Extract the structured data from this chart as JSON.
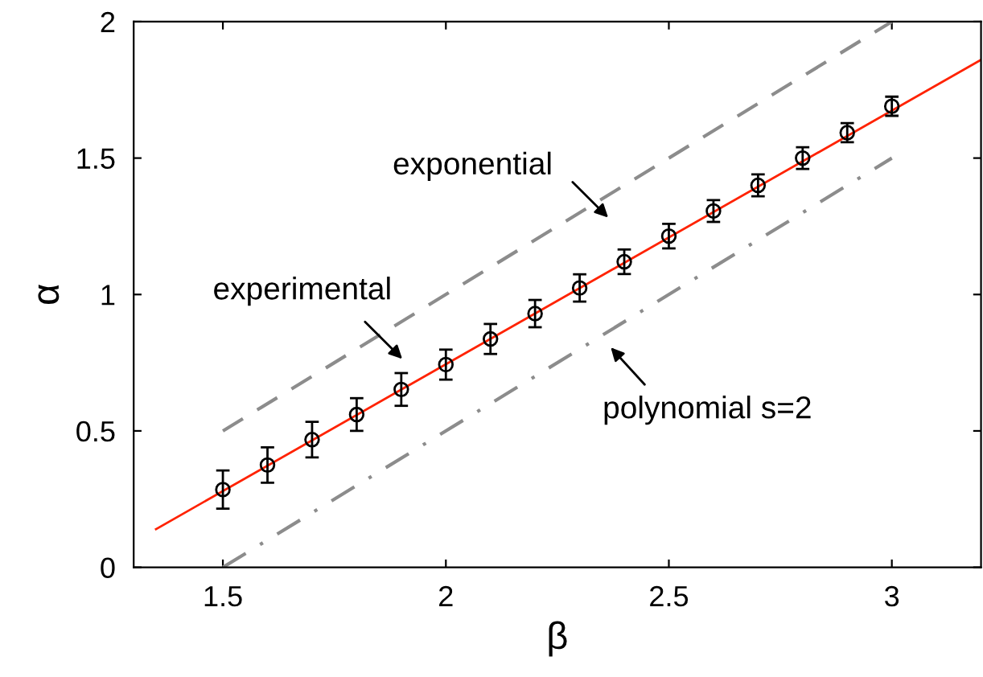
{
  "chart_data": {
    "type": "scatter",
    "xlabel": "β",
    "ylabel": "α",
    "xlim": [
      1.3,
      3.2
    ],
    "ylim": [
      0,
      2
    ],
    "xticks": [
      1.5,
      2,
      2.5,
      3
    ],
    "yticks": [
      0,
      0.5,
      1,
      1.5,
      2
    ],
    "grid": false,
    "legend": false,
    "series": [
      {
        "type": "line",
        "color": "#ff2200",
        "line_style": "solid",
        "marker": "none",
        "x": [
          1.35,
          3.2
        ],
        "values": [
          0.14,
          1.86
        ]
      },
      {
        "type": "line",
        "color": "#8c8c8c",
        "line_style": "dashed",
        "marker": "none",
        "x": [
          1.5,
          3.0
        ],
        "values": [
          0.5,
          2.0
        ]
      },
      {
        "type": "line",
        "color": "#8c8c8c",
        "line_style": "dashdot",
        "marker": "none",
        "x": [
          1.5,
          3.0
        ],
        "values": [
          0.0,
          1.5
        ]
      },
      {
        "color": "#000000",
        "marker": "circle",
        "x": [
          1.5,
          1.6,
          1.7,
          1.8,
          1.9,
          2.0,
          2.1,
          2.2,
          2.3,
          2.4,
          2.5,
          2.6,
          2.7,
          2.8,
          2.9,
          3.0
        ],
        "values": [
          0.285,
          0.375,
          0.468,
          0.56,
          0.652,
          0.743,
          0.837,
          0.93,
          1.024,
          1.12,
          1.214,
          1.306,
          1.4,
          1.5,
          1.593,
          1.69
        ],
        "errors": [
          0.07,
          0.065,
          0.065,
          0.06,
          0.06,
          0.055,
          0.055,
          0.05,
          0.05,
          0.045,
          0.045,
          0.04,
          0.04,
          0.04,
          0.035,
          0.035
        ]
      }
    ],
    "annotations": [
      "exponential",
      "experimental",
      "polynomial s=2"
    ]
  }
}
